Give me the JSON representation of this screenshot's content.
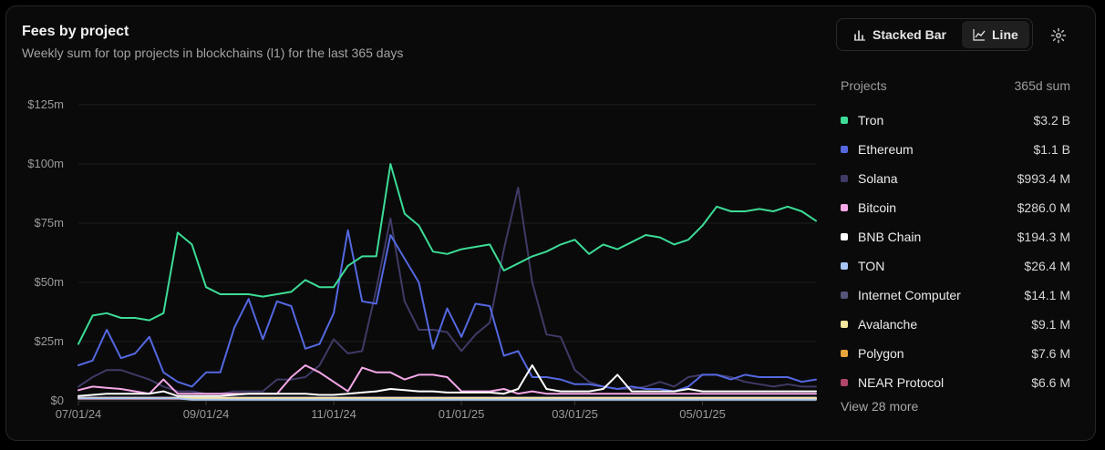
{
  "header": {
    "title": "Fees by project",
    "subtitle": "Weekly sum for top projects in blockchains (l1) for the last 365 days"
  },
  "toggle": {
    "stacked_label": "Stacked Bar",
    "line_label": "Line",
    "active": "Line"
  },
  "legend": {
    "col_projects": "Projects",
    "col_sum": "365d sum",
    "items": [
      {
        "name": "Tron",
        "value": "$3.2 B",
        "color": "#3ddc97"
      },
      {
        "name": "Ethereum",
        "value": "$1.1 B",
        "color": "#5468e0"
      },
      {
        "name": "Solana",
        "value": "$993.4 M",
        "color": "#3f3a66"
      },
      {
        "name": "Bitcoin",
        "value": "$286.0 M",
        "color": "#f5a8e8"
      },
      {
        "name": "BNB Chain",
        "value": "$194.3 M",
        "color": "#ffffff"
      },
      {
        "name": "TON",
        "value": "$26.4 M",
        "color": "#a9c4f5"
      },
      {
        "name": "Internet Computer",
        "value": "$14.1 M",
        "color": "#55557a"
      },
      {
        "name": "Avalanche",
        "value": "$9.1 M",
        "color": "#f5e6a0"
      },
      {
        "name": "Polygon",
        "value": "$7.6 M",
        "color": "#e8a43c"
      },
      {
        "name": "NEAR Protocol",
        "value": "$6.6 M",
        "color": "#b0466a"
      }
    ],
    "more_label": "View 28 more"
  },
  "chart_data": {
    "type": "line",
    "x_start": "2024-06-30",
    "week_count": 53,
    "yticks": [
      "$0",
      "$25m",
      "$50m",
      "$75m",
      "$100m",
      "$125m"
    ],
    "ylim": [
      0,
      125
    ],
    "y_unit": "millions USD",
    "grid": true,
    "xticks": [
      {
        "label": "07/01/24",
        "week": 0
      },
      {
        "label": "09/01/24",
        "week": 9
      },
      {
        "label": "11/01/24",
        "week": 18
      },
      {
        "label": "01/01/25",
        "week": 27
      },
      {
        "label": "03/01/25",
        "week": 35
      },
      {
        "label": "05/01/25",
        "week": 44
      }
    ],
    "series": [
      {
        "name": "Internet Computer",
        "color": "#55557a",
        "values": [
          1.5,
          1.5,
          1.5,
          1.5,
          1.5,
          1.5,
          1.5,
          1.5,
          1.5,
          1.5,
          1.5,
          1.5,
          1.5,
          1.5,
          1.5,
          1.5,
          1.5,
          1.5,
          1.5,
          1.5,
          1.5,
          1.5,
          1.5,
          1.5,
          1.5,
          1.5,
          1.5,
          1.5,
          1.5,
          1.5,
          1.5,
          1.5,
          1.5,
          1.5,
          1.5,
          1.5,
          1.5,
          1.5,
          1.5,
          1.5,
          1.5,
          1.5,
          1.5,
          1.5,
          1.5,
          1.5,
          1.5,
          1.5,
          1.5,
          1.5,
          1.5,
          1.5,
          1.5
        ]
      },
      {
        "name": "NEAR Protocol",
        "color": "#b0466a",
        "values": [
          0.8,
          0.8,
          0.8,
          0.8,
          0.8,
          0.8,
          0.8,
          0.8,
          0.8,
          0.8,
          0.8,
          0.8,
          0.8,
          0.8,
          0.8,
          0.8,
          0.8,
          0.8,
          0.8,
          0.8,
          0.8,
          0.8,
          0.8,
          0.8,
          0.8,
          0.8,
          0.8,
          0.8,
          0.8,
          0.8,
          0.8,
          0.8,
          0.8,
          0.8,
          0.8,
          0.8,
          0.8,
          0.8,
          0.8,
          0.8,
          0.8,
          0.8,
          0.8,
          0.8,
          0.8,
          0.8,
          0.8,
          0.8,
          0.8,
          0.8,
          0.8,
          0.8,
          0.8
        ]
      },
      {
        "name": "Polygon",
        "color": "#e8a43c",
        "values": [
          1,
          1,
          1,
          1,
          1,
          1,
          1,
          1,
          1,
          1,
          1,
          1,
          1,
          1,
          1,
          1,
          1,
          1,
          1,
          1,
          1,
          1,
          1,
          1,
          1,
          1,
          1,
          1,
          1,
          1,
          1,
          1,
          1,
          1,
          1,
          1,
          1,
          1,
          1,
          1,
          1,
          1,
          1,
          1,
          1,
          1,
          1,
          1,
          1,
          1,
          1,
          1,
          1
        ]
      },
      {
        "name": "Avalanche",
        "color": "#f5e6a0",
        "values": [
          1.2,
          1.2,
          1.2,
          1.2,
          1.2,
          1.2,
          1.2,
          1.2,
          1.2,
          1.2,
          1.2,
          1.2,
          1.2,
          1.2,
          1.2,
          1.2,
          1.2,
          1.2,
          1.2,
          1.2,
          1.2,
          1.2,
          1.2,
          1.2,
          1.2,
          1.2,
          1.2,
          1.2,
          1.2,
          1.2,
          1.2,
          1.2,
          1.2,
          1.2,
          1.2,
          1.2,
          1.2,
          1.2,
          1.2,
          1.2,
          1.2,
          1.2,
          1.2,
          1.2,
          1.2,
          1.2,
          1.2,
          1.2,
          1.2,
          1.2,
          1.2,
          1.2,
          1.2
        ]
      },
      {
        "name": "TON",
        "color": "#a9c4f5",
        "values": [
          1,
          1,
          1,
          1,
          1,
          1,
          1,
          1,
          0.5,
          0.5,
          0.5,
          0.5,
          0.5,
          0.5,
          0.5,
          0.5,
          0.5,
          0.5,
          0.5,
          0.5,
          0.5,
          0.5,
          0.5,
          0.5,
          0.5,
          0.5,
          0.5,
          0.5,
          0.5,
          0.5,
          0.5,
          0.5,
          0.5,
          0.5,
          0.5,
          0.5,
          0.5,
          0.5,
          0.5,
          0.5,
          0.5,
          0.5,
          0.5,
          0.5,
          0.5,
          0.5,
          0.5,
          0.5,
          0.5,
          0.5,
          0.5,
          0.5,
          0.5
        ]
      },
      {
        "name": "Solana",
        "color": "#3f3a66",
        "values": [
          6,
          10,
          13,
          13,
          11,
          9,
          6,
          4,
          4,
          3,
          3,
          4,
          4,
          4,
          9,
          9,
          10,
          15,
          26,
          20,
          21,
          47,
          77,
          42,
          30,
          30,
          29,
          21,
          28,
          33,
          64,
          90,
          50,
          28,
          27,
          13,
          8,
          6,
          5,
          5,
          6,
          8,
          6,
          10,
          11,
          11,
          10,
          8,
          7,
          6,
          7,
          6,
          6
        ]
      },
      {
        "name": "Ethereum",
        "color": "#5468e0",
        "values": [
          15,
          17,
          30,
          18,
          20,
          27,
          12,
          8,
          6,
          12,
          12,
          31,
          43,
          26,
          42,
          40,
          22,
          24,
          37,
          72,
          42,
          41,
          70,
          60,
          50,
          22,
          39,
          27,
          41,
          40,
          19,
          21,
          10,
          10,
          9,
          7,
          7,
          6,
          5,
          6,
          5,
          5,
          4,
          6,
          11,
          11,
          9,
          11,
          10,
          10,
          10,
          8,
          9
        ]
      },
      {
        "name": "Bitcoin",
        "color": "#f5a8e8",
        "values": [
          4.5,
          6,
          5.5,
          5,
          4,
          3,
          9,
          3,
          3,
          3,
          3,
          3,
          3,
          3,
          3,
          10,
          15,
          12,
          8,
          4,
          14,
          12,
          12,
          9,
          11,
          11,
          10,
          4,
          4,
          4,
          5,
          3,
          4,
          3,
          3,
          3,
          3,
          3,
          3,
          3,
          3,
          3,
          3,
          3,
          3,
          3,
          3,
          3,
          3,
          3,
          3,
          3,
          3
        ]
      },
      {
        "name": "BNB Chain",
        "color": "#ffffff",
        "values": [
          2,
          2.5,
          3,
          3,
          3,
          3,
          4,
          2,
          2,
          2,
          2,
          2.5,
          3,
          3,
          3,
          3,
          3,
          2.5,
          2.5,
          3,
          3.5,
          4,
          5,
          4.5,
          4,
          4,
          3.5,
          3.5,
          3.5,
          3.5,
          3,
          5,
          15,
          5,
          4,
          4,
          4,
          5,
          11,
          4,
          4,
          4,
          4,
          5,
          4,
          4,
          4,
          4,
          4,
          4,
          4,
          4,
          4
        ]
      },
      {
        "name": "Tron",
        "color": "#3ddc97",
        "values": [
          24,
          36,
          37,
          35,
          35,
          34,
          37,
          71,
          66,
          48,
          45,
          45,
          45,
          44,
          45,
          46,
          51,
          48,
          48,
          57,
          61,
          61,
          100,
          79,
          74,
          63,
          62,
          64,
          65,
          66,
          55,
          58,
          61,
          63,
          66,
          68,
          62,
          66,
          64,
          67,
          70,
          69,
          66,
          68,
          74,
          82,
          80,
          80,
          81,
          80,
          82,
          80,
          76
        ]
      }
    ]
  }
}
